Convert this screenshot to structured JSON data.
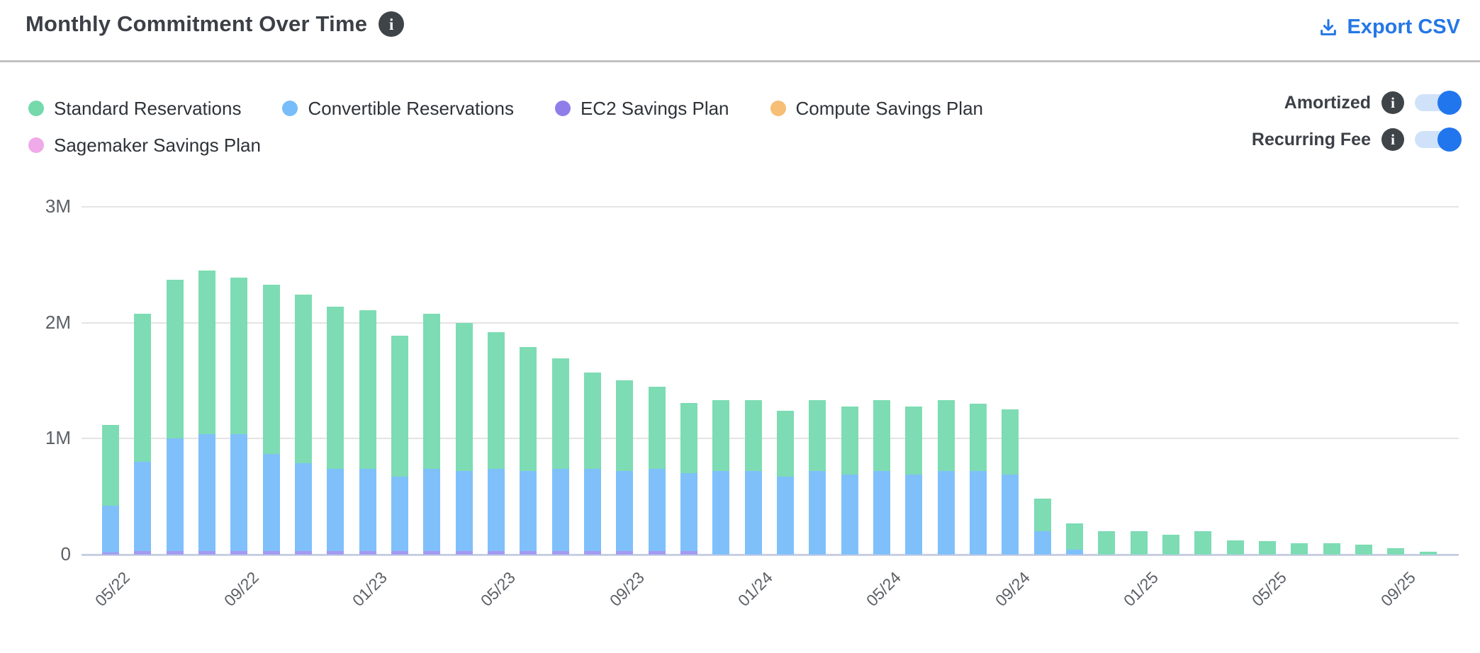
{
  "header": {
    "title": "Monthly Commitment Over Time",
    "info_glyph": "i",
    "export_label": "Export CSV"
  },
  "toggles": {
    "items": [
      {
        "label": "Amortized",
        "state": "on"
      },
      {
        "label": "Recurring Fee",
        "state": "on"
      }
    ],
    "on_color": "#2176ed",
    "track_color": "#cfe2f9"
  },
  "legend": {
    "items": [
      {
        "label": "Standard Reservations",
        "color": "#74d9ab"
      },
      {
        "label": "Convertible Reservations",
        "color": "#77bdf9"
      },
      {
        "label": "EC2 Savings Plan",
        "color": "#8f7ee9"
      },
      {
        "label": "Compute Savings Plan",
        "color": "#f6be76"
      },
      {
        "label": "Sagemaker Savings Plan",
        "color": "#f0a9e9"
      }
    ]
  },
  "chart_data": {
    "type": "bar",
    "stacked": true,
    "title": "Monthly Commitment Over Time",
    "xlabel": "",
    "ylabel": "",
    "unit": "M",
    "ylim": [
      0,
      3
    ],
    "grid": true,
    "categories": [
      "05/22",
      "06/22",
      "07/22",
      "08/22",
      "09/22",
      "10/22",
      "11/22",
      "12/22",
      "01/23",
      "02/23",
      "03/23",
      "04/23",
      "05/23",
      "06/23",
      "07/23",
      "08/23",
      "09/23",
      "10/23",
      "11/23",
      "12/23",
      "01/24",
      "02/24",
      "03/24",
      "04/24",
      "05/24",
      "06/24",
      "07/24",
      "08/24",
      "09/24",
      "10/24",
      "11/24",
      "12/24",
      "01/25",
      "02/25",
      "03/25",
      "04/25",
      "05/25",
      "06/25",
      "07/25",
      "08/25",
      "09/25",
      "10/25"
    ],
    "x_tick_every": 4,
    "x_tick_labels": [
      "05/22",
      "09/22",
      "01/23",
      "05/23",
      "09/23",
      "01/24",
      "05/24",
      "09/24",
      "01/25",
      "05/25",
      "09/25"
    ],
    "y_axis": {
      "ticks": [
        {
          "label": "3M",
          "value": 3
        },
        {
          "label": "2M",
          "value": 2
        },
        {
          "label": "1M",
          "value": 1
        },
        {
          "label": "0",
          "value": 0
        }
      ]
    },
    "stack_bottom_up": [
      "EC2 Savings Plan",
      "Convertible Reservations",
      "Standard Reservations",
      "Compute Savings Plan",
      "Sagemaker Savings Plan"
    ],
    "series": [
      {
        "name": "Standard Reservations",
        "color": "#7ddcb3",
        "values": [
          0.7,
          1.28,
          1.37,
          1.41,
          1.35,
          1.46,
          1.45,
          1.4,
          1.37,
          1.22,
          1.34,
          1.28,
          1.18,
          1.07,
          0.95,
          0.83,
          0.78,
          0.71,
          0.61,
          0.61,
          0.61,
          0.57,
          0.61,
          0.59,
          0.61,
          0.59,
          0.61,
          0.58,
          0.56,
          0.28,
          0.23,
          0.2,
          0.2,
          0.17,
          0.2,
          0.12,
          0.115,
          0.1,
          0.1,
          0.085,
          0.055,
          0.025
        ]
      },
      {
        "name": "Convertible Reservations",
        "color": "#7fc0fa",
        "values": [
          0.4,
          0.77,
          0.97,
          1.01,
          1.01,
          0.84,
          0.76,
          0.71,
          0.71,
          0.64,
          0.71,
          0.69,
          0.71,
          0.69,
          0.71,
          0.71,
          0.69,
          0.71,
          0.67,
          0.72,
          0.72,
          0.67,
          0.72,
          0.69,
          0.72,
          0.69,
          0.72,
          0.72,
          0.69,
          0.2,
          0.04,
          0,
          0,
          0,
          0,
          0,
          0,
          0,
          0,
          0,
          0,
          0
        ]
      },
      {
        "name": "EC2 Savings Plan",
        "color": "#a29bf2",
        "values": [
          0.02,
          0.03,
          0.03,
          0.03,
          0.03,
          0.03,
          0.03,
          0.03,
          0.03,
          0.03,
          0.03,
          0.03,
          0.03,
          0.03,
          0.03,
          0.03,
          0.03,
          0.03,
          0.03,
          0,
          0,
          0,
          0,
          0,
          0,
          0,
          0,
          0,
          0,
          0,
          0,
          0,
          0,
          0,
          0,
          0,
          0,
          0,
          0,
          0,
          0,
          0
        ]
      },
      {
        "name": "Compute Savings Plan",
        "color": "#f6be76",
        "values": [
          0,
          0,
          0,
          0,
          0,
          0,
          0,
          0,
          0,
          0,
          0,
          0,
          0,
          0,
          0,
          0,
          0,
          0,
          0,
          0,
          0,
          0,
          0,
          0,
          0,
          0,
          0,
          0,
          0,
          0,
          0,
          0,
          0,
          0,
          0,
          0,
          0,
          0,
          0,
          0,
          0,
          0
        ]
      },
      {
        "name": "Sagemaker Savings Plan",
        "color": "#f0a9e9",
        "values": [
          0,
          0,
          0,
          0,
          0,
          0,
          0,
          0,
          0,
          0,
          0,
          0,
          0,
          0,
          0,
          0,
          0,
          0,
          0,
          0,
          0,
          0,
          0,
          0,
          0,
          0,
          0,
          0,
          0,
          0,
          0,
          0,
          0,
          0,
          0,
          0,
          0,
          0,
          0,
          0,
          0,
          0
        ]
      }
    ]
  }
}
